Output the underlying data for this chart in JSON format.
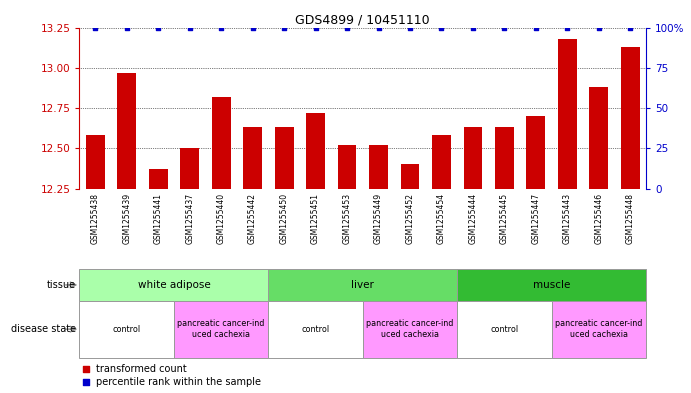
{
  "title": "GDS4899 / 10451110",
  "samples": [
    "GSM1255438",
    "GSM1255439",
    "GSM1255441",
    "GSM1255437",
    "GSM1255440",
    "GSM1255442",
    "GSM1255450",
    "GSM1255451",
    "GSM1255453",
    "GSM1255449",
    "GSM1255452",
    "GSM1255454",
    "GSM1255444",
    "GSM1255445",
    "GSM1255447",
    "GSM1255443",
    "GSM1255446",
    "GSM1255448"
  ],
  "bar_values": [
    12.58,
    12.97,
    12.37,
    12.5,
    12.82,
    12.63,
    12.63,
    12.72,
    12.52,
    12.52,
    12.4,
    12.58,
    12.63,
    12.63,
    12.7,
    13.18,
    12.88,
    13.13
  ],
  "percentile_values": [
    100,
    100,
    100,
    100,
    100,
    100,
    100,
    100,
    100,
    100,
    100,
    100,
    100,
    100,
    100,
    100,
    100,
    100
  ],
  "bar_color": "#cc0000",
  "percentile_color": "#0000cc",
  "ylim_left": [
    12.25,
    13.25
  ],
  "ylim_right": [
    0,
    100
  ],
  "yticks_left": [
    12.25,
    12.5,
    12.75,
    13.0,
    13.25
  ],
  "yticks_right": [
    0,
    25,
    50,
    75,
    100
  ],
  "tissue_groups": [
    {
      "label": "white adipose",
      "start": 0,
      "end": 6,
      "color": "#aaffaa"
    },
    {
      "label": "liver",
      "start": 6,
      "end": 12,
      "color": "#66dd66"
    },
    {
      "label": "muscle",
      "start": 12,
      "end": 18,
      "color": "#33bb33"
    }
  ],
  "disease_groups": [
    {
      "label": "control",
      "start": 0,
      "end": 3,
      "color": "#ffffff"
    },
    {
      "label": "pancreatic cancer-ind\nuced cachexia",
      "start": 3,
      "end": 6,
      "color": "#ff99ff"
    },
    {
      "label": "control",
      "start": 6,
      "end": 9,
      "color": "#ffffff"
    },
    {
      "label": "pancreatic cancer-ind\nuced cachexia",
      "start": 9,
      "end": 12,
      "color": "#ff99ff"
    },
    {
      "label": "control",
      "start": 12,
      "end": 15,
      "color": "#ffffff"
    },
    {
      "label": "pancreatic cancer-ind\nuced cachexia",
      "start": 15,
      "end": 18,
      "color": "#ff99ff"
    }
  ],
  "background_color": "#ffffff",
  "left_axis_color": "#cc0000",
  "right_axis_color": "#0000cc",
  "xtick_bg_color": "#cccccc"
}
